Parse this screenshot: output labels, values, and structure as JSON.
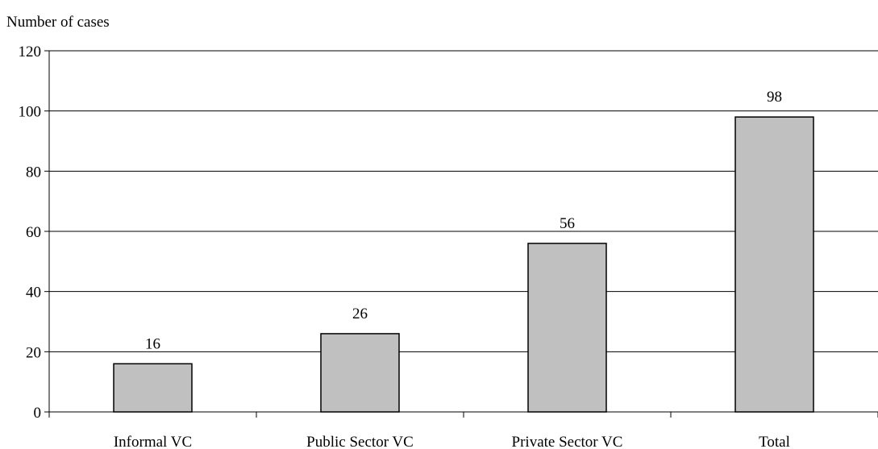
{
  "chart_data": {
    "type": "bar",
    "title": "",
    "ylabel": "Number of cases",
    "xlabel": "",
    "categories": [
      "Informal VC",
      "Public Sector VC",
      "Private Sector VC",
      "Total"
    ],
    "values": [
      16,
      26,
      56,
      98
    ],
    "data_labels": [
      "16",
      "26",
      "56",
      "98"
    ],
    "ylim": [
      0,
      120
    ],
    "yticks": [
      0,
      20,
      40,
      60,
      80,
      100,
      120
    ],
    "grid": true,
    "legend": "none",
    "colors": {
      "bar_fill": "#c0c0c0",
      "bar_stroke": "#000000",
      "grid": "#000000"
    }
  }
}
